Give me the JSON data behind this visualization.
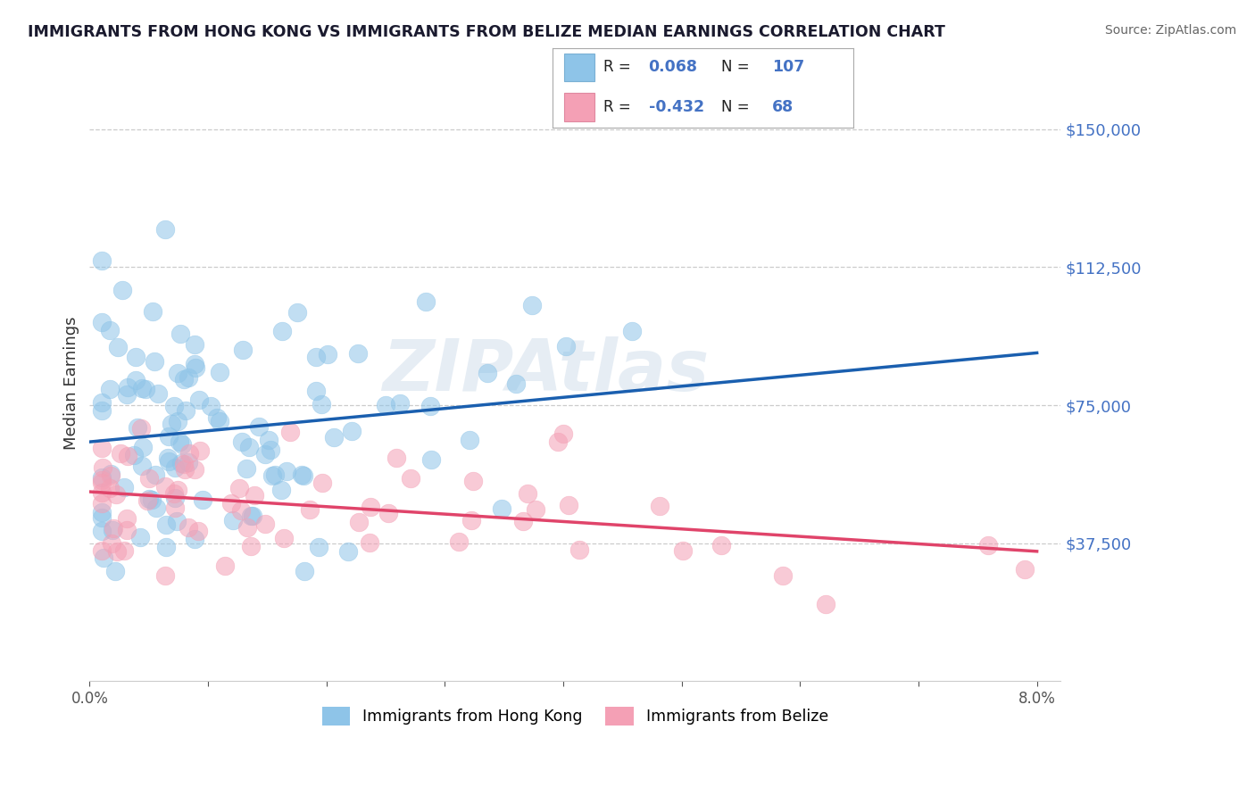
{
  "title": "IMMIGRANTS FROM HONG KONG VS IMMIGRANTS FROM BELIZE MEDIAN EARNINGS CORRELATION CHART",
  "source": "Source: ZipAtlas.com",
  "ylabel": "Median Earnings",
  "xlim": [
    0.0,
    0.082
  ],
  "ylim": [
    0,
    162000
  ],
  "yticks": [
    37500,
    75000,
    112500,
    150000
  ],
  "ytick_labels": [
    "$37,500",
    "$75,000",
    "$112,500",
    "$150,000"
  ],
  "xticks": [
    0.0,
    0.01,
    0.02,
    0.03,
    0.04,
    0.05,
    0.06,
    0.07,
    0.08
  ],
  "xtick_labels": [
    "0.0%",
    "",
    "",
    "",
    "",
    "",
    "",
    "",
    "8.0%"
  ],
  "color_blue": "#8ec4e8",
  "color_pink": "#f4a0b5",
  "line_color_blue": "#1a5faf",
  "line_color_pink": "#e0446a",
  "tick_color": "#4472c4",
  "bg_color": "#ffffff",
  "watermark": "ZIPAtlas",
  "hk_r": 0.068,
  "hk_n": 107,
  "bz_r": -0.432,
  "bz_n": 68,
  "legend_r1_val": "0.068",
  "legend_n1_val": "107",
  "legend_r2_val": "-0.432",
  "legend_n2_val": "68"
}
